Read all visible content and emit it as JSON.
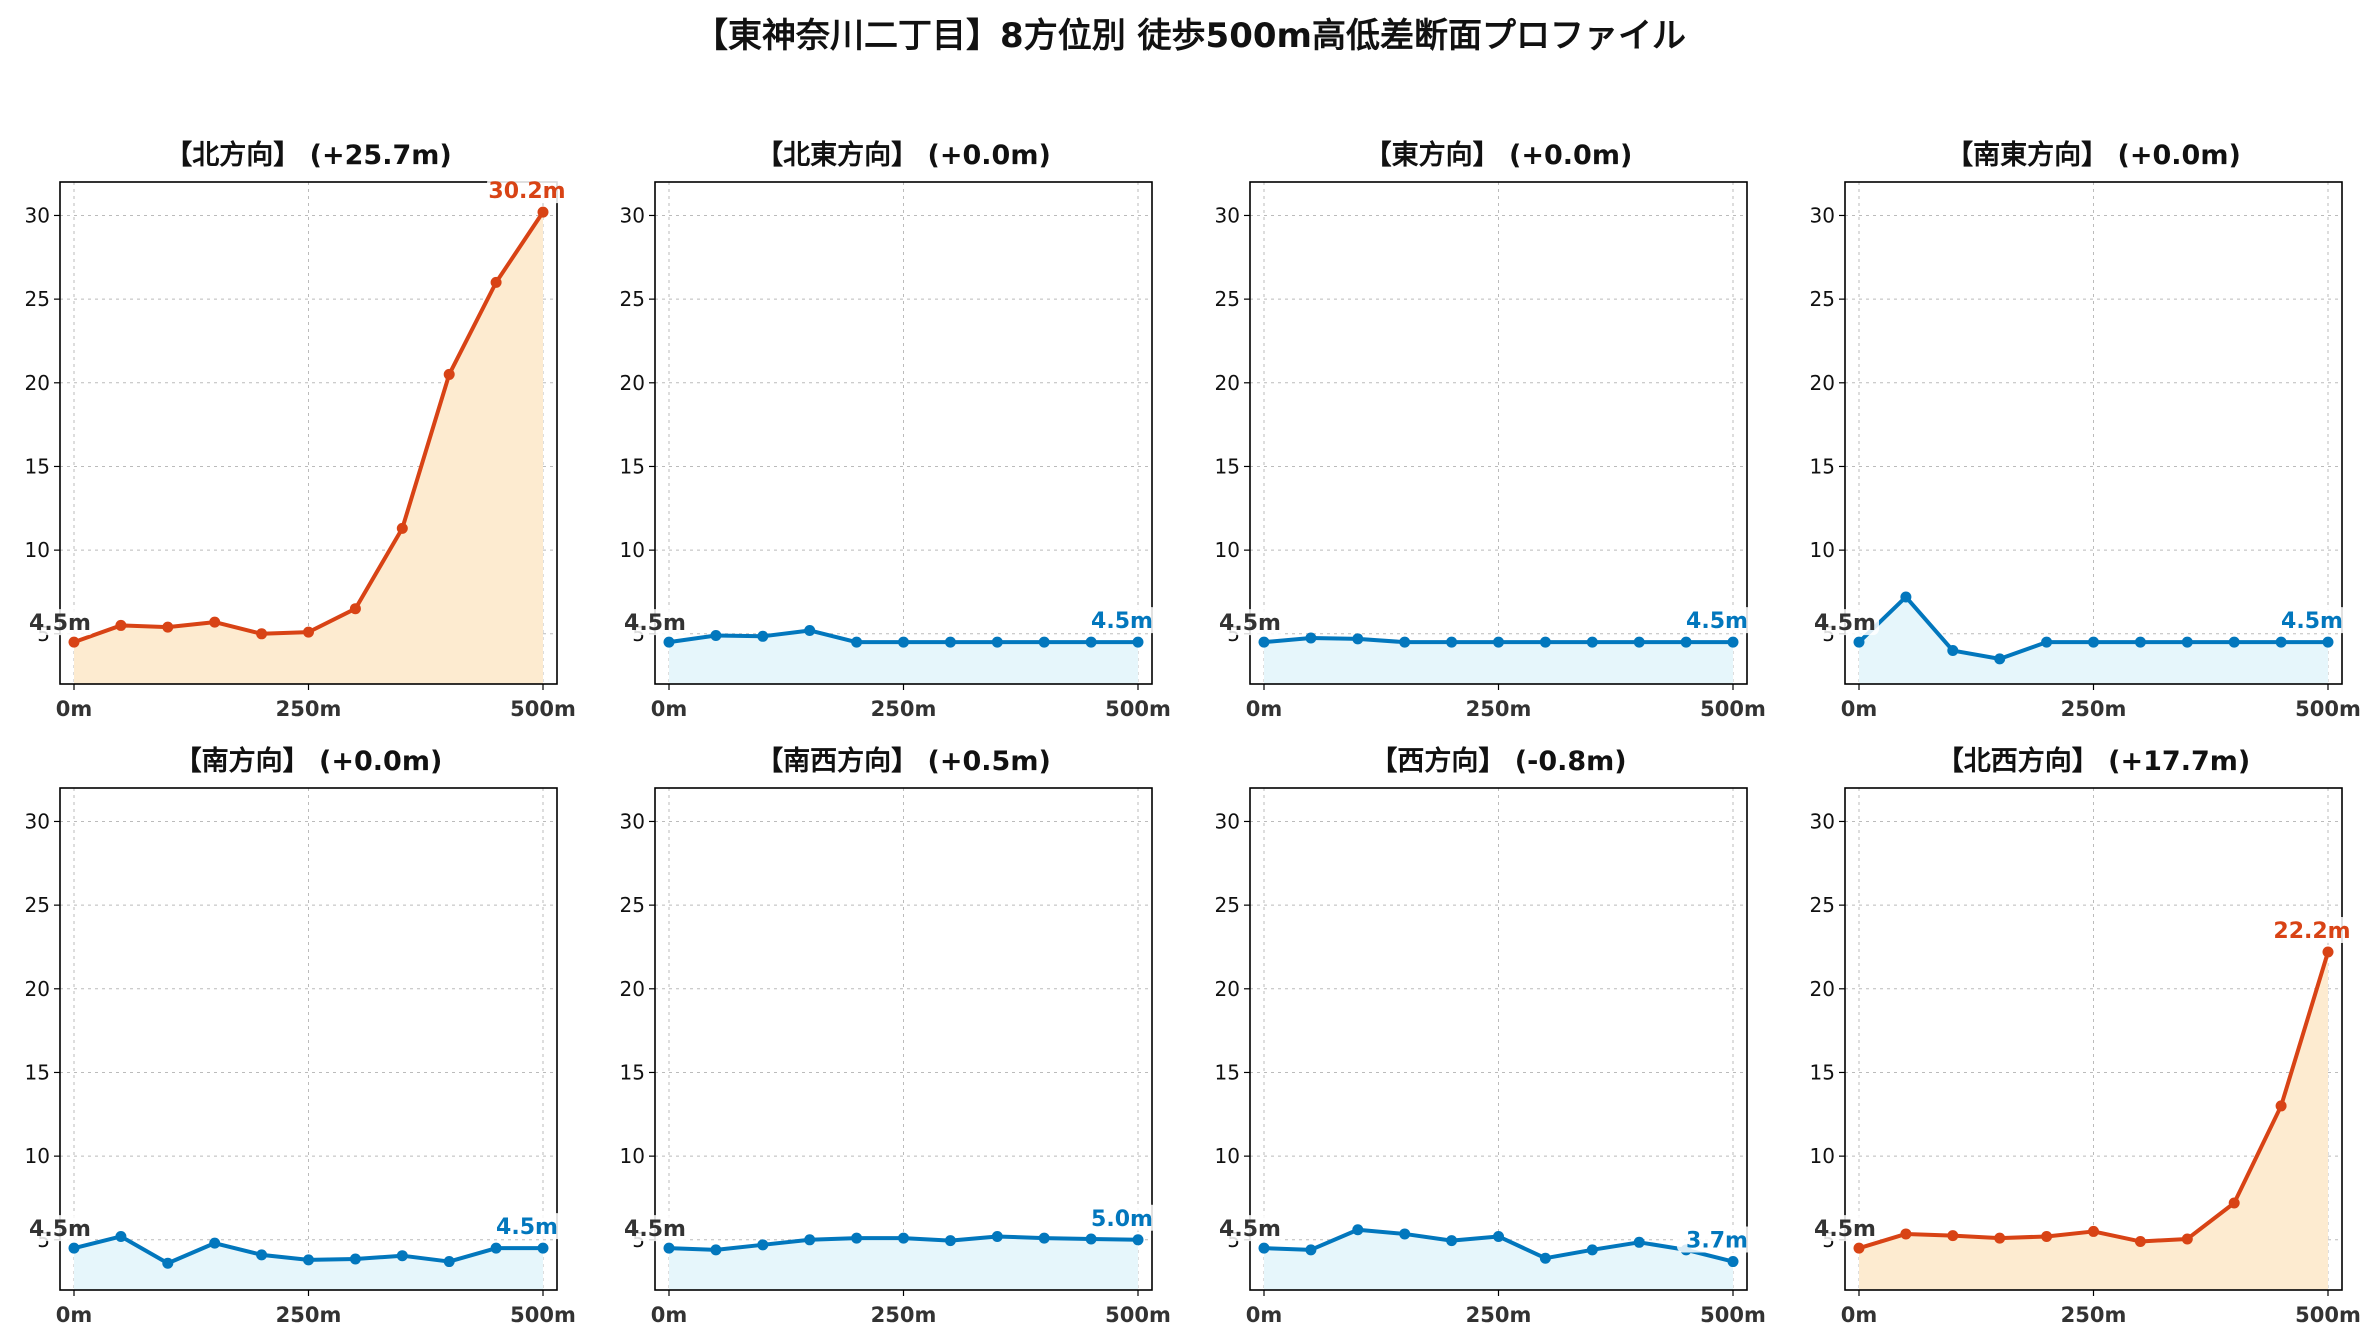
{
  "title": "【東神奈川二丁目】8方位別 徒歩500m高低差断面プロファイル",
  "colors": {
    "up_line": "#d84315",
    "up_fill": "#fdebd0",
    "flat_line": "#0277bd",
    "flat_fill": "#e6f6fb",
    "start_label": "#333333",
    "axes": "#000000",
    "grid": "#bbbbbb"
  },
  "chart_data": [
    {
      "type": "area",
      "title": "【北方向】 (+25.7m)",
      "trend": "up",
      "x": [
        0,
        50,
        100,
        150,
        200,
        250,
        300,
        350,
        400,
        450,
        500
      ],
      "y": [
        4.5,
        5.5,
        5.4,
        5.7,
        5.0,
        5.1,
        6.5,
        11.3,
        20.5,
        26.0,
        30.2
      ],
      "start_label": "4.5m",
      "end_label": "30.2m",
      "x_ticks": [
        "0m",
        "250m",
        "500m"
      ],
      "y_ticks": [
        5,
        10,
        15,
        20,
        25,
        30
      ],
      "ylim": [
        2,
        32
      ],
      "grid": true
    },
    {
      "type": "area",
      "title": "【北東方向】 (+0.0m)",
      "trend": "flat",
      "x": [
        0,
        50,
        100,
        150,
        200,
        250,
        300,
        350,
        400,
        450,
        500
      ],
      "y": [
        4.5,
        4.9,
        4.85,
        5.2,
        4.5,
        4.5,
        4.5,
        4.5,
        4.5,
        4.5,
        4.5
      ],
      "start_label": "4.5m",
      "end_label": "4.5m",
      "x_ticks": [
        "0m",
        "250m",
        "500m"
      ],
      "y_ticks": [
        5,
        10,
        15,
        20,
        25,
        30
      ],
      "ylim": [
        2,
        32
      ],
      "grid": true
    },
    {
      "type": "area",
      "title": "【東方向】 (+0.0m)",
      "trend": "flat",
      "x": [
        0,
        50,
        100,
        150,
        200,
        250,
        300,
        350,
        400,
        450,
        500
      ],
      "y": [
        4.5,
        4.75,
        4.7,
        4.5,
        4.5,
        4.5,
        4.5,
        4.5,
        4.5,
        4.5,
        4.5
      ],
      "start_label": "4.5m",
      "end_label": "4.5m",
      "x_ticks": [
        "0m",
        "250m",
        "500m"
      ],
      "y_ticks": [
        5,
        10,
        15,
        20,
        25,
        30
      ],
      "ylim": [
        2,
        32
      ],
      "grid": true
    },
    {
      "type": "area",
      "title": "【南東方向】 (+0.0m)",
      "trend": "flat",
      "x": [
        0,
        50,
        100,
        150,
        200,
        250,
        300,
        350,
        400,
        450,
        500
      ],
      "y": [
        4.5,
        7.2,
        4.0,
        3.5,
        4.5,
        4.5,
        4.5,
        4.5,
        4.5,
        4.5,
        4.5
      ],
      "start_label": "4.5m",
      "end_label": "4.5m",
      "x_ticks": [
        "0m",
        "250m",
        "500m"
      ],
      "y_ticks": [
        5,
        10,
        15,
        20,
        25,
        30
      ],
      "ylim": [
        2,
        32
      ],
      "grid": true
    },
    {
      "type": "area",
      "title": "【南方向】 (+0.0m)",
      "trend": "flat",
      "x": [
        0,
        50,
        100,
        150,
        200,
        250,
        300,
        350,
        400,
        450,
        500
      ],
      "y": [
        4.5,
        5.2,
        3.6,
        4.8,
        4.1,
        3.8,
        3.85,
        4.05,
        3.7,
        4.5,
        4.5
      ],
      "start_label": "4.5m",
      "end_label": "4.5m",
      "x_ticks": [
        "0m",
        "250m",
        "500m"
      ],
      "y_ticks": [
        5,
        10,
        15,
        20,
        25,
        30
      ],
      "ylim": [
        2,
        32
      ],
      "grid": true
    },
    {
      "type": "area",
      "title": "【南西方向】 (+0.5m)",
      "trend": "flat",
      "x": [
        0,
        50,
        100,
        150,
        200,
        250,
        300,
        350,
        400,
        450,
        500
      ],
      "y": [
        4.5,
        4.4,
        4.7,
        5.0,
        5.1,
        5.1,
        4.95,
        5.2,
        5.1,
        5.05,
        5.0
      ],
      "start_label": "4.5m",
      "end_label": "5.0m",
      "x_ticks": [
        "0m",
        "250m",
        "500m"
      ],
      "y_ticks": [
        5,
        10,
        15,
        20,
        25,
        30
      ],
      "ylim": [
        2,
        32
      ],
      "grid": true
    },
    {
      "type": "area",
      "title": "【西方向】 (-0.8m)",
      "trend": "flat",
      "x": [
        0,
        50,
        100,
        150,
        200,
        250,
        300,
        350,
        400,
        450,
        500
      ],
      "y": [
        4.5,
        4.4,
        5.6,
        5.35,
        4.95,
        5.2,
        3.9,
        4.4,
        4.85,
        4.4,
        3.7
      ],
      "start_label": "4.5m",
      "end_label": "3.7m",
      "x_ticks": [
        "0m",
        "250m",
        "500m"
      ],
      "y_ticks": [
        5,
        10,
        15,
        20,
        25,
        30
      ],
      "ylim": [
        2,
        32
      ],
      "grid": true
    },
    {
      "type": "area",
      "title": "【北西方向】 (+17.7m)",
      "trend": "up",
      "x": [
        0,
        50,
        100,
        150,
        200,
        250,
        300,
        350,
        400,
        450,
        500
      ],
      "y": [
        4.5,
        5.35,
        5.25,
        5.1,
        5.2,
        5.5,
        4.9,
        5.05,
        7.2,
        13.0,
        22.2
      ],
      "start_label": "4.5m",
      "end_label": "22.2m",
      "x_ticks": [
        "0m",
        "250m",
        "500m"
      ],
      "y_ticks": [
        5,
        10,
        15,
        20,
        25,
        30
      ],
      "ylim": [
        2,
        32
      ],
      "grid": true
    }
  ]
}
